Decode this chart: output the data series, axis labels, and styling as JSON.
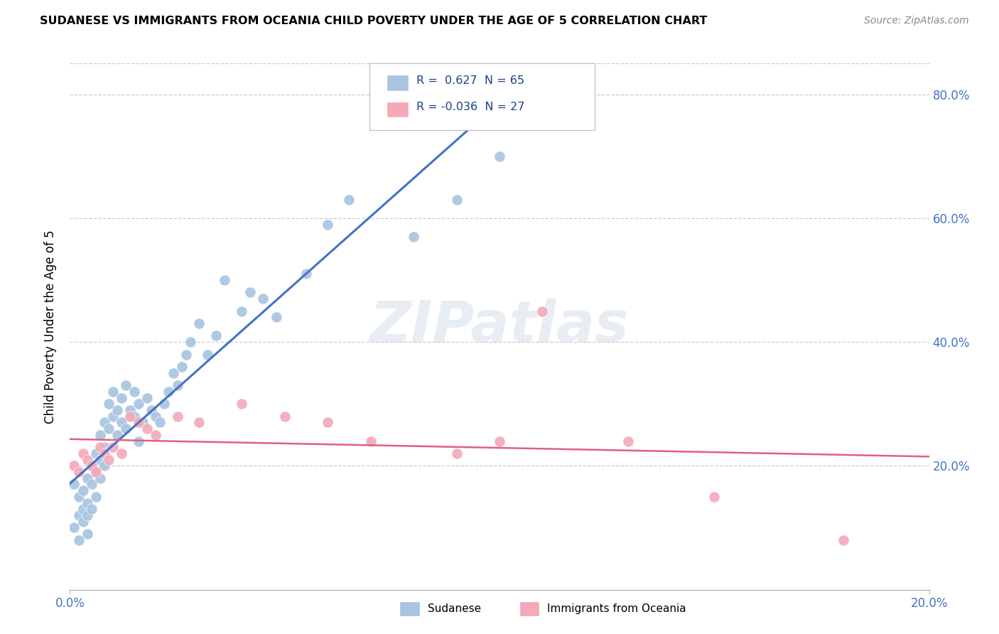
{
  "title": "SUDANESE VS IMMIGRANTS FROM OCEANIA CHILD POVERTY UNDER THE AGE OF 5 CORRELATION CHART",
  "source": "Source: ZipAtlas.com",
  "ylabel": "Child Poverty Under the Age of 5",
  "xlim": [
    0.0,
    0.2
  ],
  "ylim": [
    0.0,
    0.85
  ],
  "x_ticks": [
    0.0,
    0.2
  ],
  "x_tick_labels": [
    "0.0%",
    "20.0%"
  ],
  "y_tick_labels": [
    "20.0%",
    "40.0%",
    "60.0%",
    "80.0%"
  ],
  "y_ticks": [
    0.2,
    0.4,
    0.6,
    0.8
  ],
  "sudanese_R": 0.627,
  "sudanese_N": 65,
  "oceania_R": -0.036,
  "oceania_N": 27,
  "sudanese_color": "#a8c4e0",
  "oceania_color": "#f4a8b8",
  "line_sudanese_color": "#4472c4",
  "line_oceania_color": "#e06080",
  "watermark": "ZIPatlas",
  "sudanese_x": [
    0.001,
    0.001,
    0.002,
    0.002,
    0.002,
    0.003,
    0.003,
    0.003,
    0.004,
    0.004,
    0.004,
    0.004,
    0.005,
    0.005,
    0.005,
    0.006,
    0.006,
    0.006,
    0.007,
    0.007,
    0.007,
    0.008,
    0.008,
    0.008,
    0.009,
    0.009,
    0.01,
    0.01,
    0.011,
    0.011,
    0.012,
    0.012,
    0.013,
    0.013,
    0.014,
    0.015,
    0.015,
    0.016,
    0.016,
    0.017,
    0.018,
    0.019,
    0.02,
    0.021,
    0.022,
    0.023,
    0.024,
    0.025,
    0.026,
    0.027,
    0.028,
    0.03,
    0.032,
    0.034,
    0.036,
    0.04,
    0.042,
    0.045,
    0.048,
    0.055,
    0.06,
    0.065,
    0.08,
    0.09,
    0.1
  ],
  "sudanese_y": [
    0.17,
    0.1,
    0.12,
    0.15,
    0.08,
    0.13,
    0.16,
    0.11,
    0.14,
    0.12,
    0.18,
    0.09,
    0.17,
    0.2,
    0.13,
    0.19,
    0.22,
    0.15,
    0.21,
    0.25,
    0.18,
    0.23,
    0.27,
    0.2,
    0.26,
    0.3,
    0.28,
    0.32,
    0.25,
    0.29,
    0.27,
    0.31,
    0.26,
    0.33,
    0.29,
    0.28,
    0.32,
    0.3,
    0.24,
    0.27,
    0.31,
    0.29,
    0.28,
    0.27,
    0.3,
    0.32,
    0.35,
    0.33,
    0.36,
    0.38,
    0.4,
    0.43,
    0.38,
    0.41,
    0.5,
    0.45,
    0.48,
    0.47,
    0.44,
    0.51,
    0.59,
    0.63,
    0.57,
    0.63,
    0.7
  ],
  "oceania_x": [
    0.001,
    0.002,
    0.003,
    0.004,
    0.005,
    0.006,
    0.007,
    0.008,
    0.009,
    0.01,
    0.012,
    0.014,
    0.016,
    0.018,
    0.02,
    0.025,
    0.03,
    0.04,
    0.05,
    0.06,
    0.07,
    0.09,
    0.1,
    0.11,
    0.13,
    0.15,
    0.18
  ],
  "oceania_y": [
    0.2,
    0.19,
    0.22,
    0.21,
    0.2,
    0.19,
    0.23,
    0.22,
    0.21,
    0.23,
    0.22,
    0.28,
    0.27,
    0.26,
    0.25,
    0.28,
    0.27,
    0.3,
    0.28,
    0.27,
    0.24,
    0.22,
    0.24,
    0.45,
    0.24,
    0.15,
    0.08
  ]
}
